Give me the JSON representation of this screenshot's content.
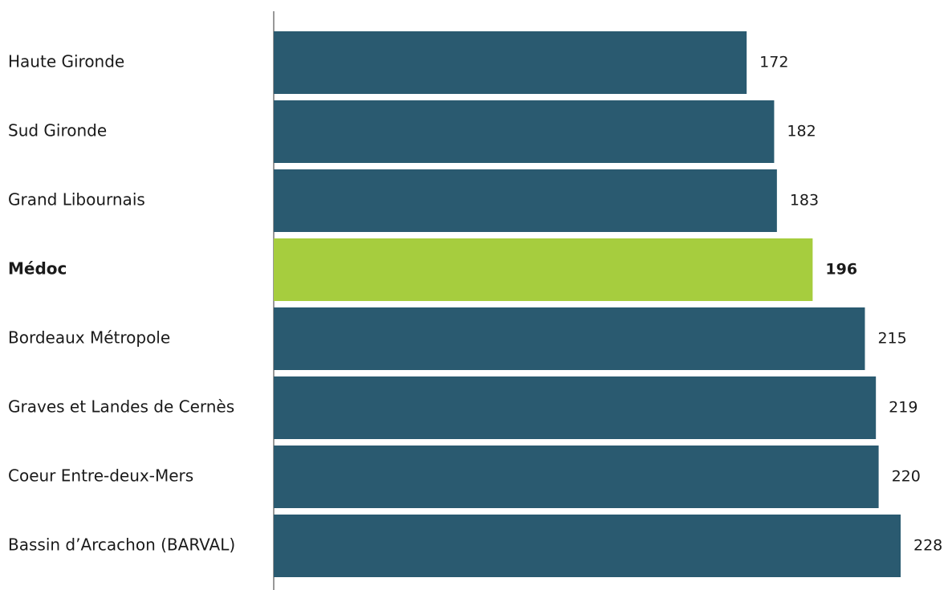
{
  "chart_data": {
    "type": "bar",
    "orientation": "horizontal",
    "title": "",
    "xlabel": "",
    "ylabel": "",
    "categories": [
      "Haute Gironde",
      "Sud Gironde",
      "Grand Libournais",
      "Médoc",
      "Bordeaux Métropole",
      "Graves et Landes de Cernès",
      "Coeur Entre-deux-Mers",
      "Bassin d’Arcachon (BARVAL)"
    ],
    "values": [
      172,
      182,
      183,
      196,
      215,
      219,
      220,
      228
    ],
    "highlight_category": "Médoc",
    "xlim": [
      0,
      228
    ],
    "grid": false,
    "legend": "none",
    "colors": {
      "bar": "#2a5a70",
      "highlight": "#a6cd3e",
      "axis": "#555555",
      "text": "#1a1a1a"
    }
  }
}
